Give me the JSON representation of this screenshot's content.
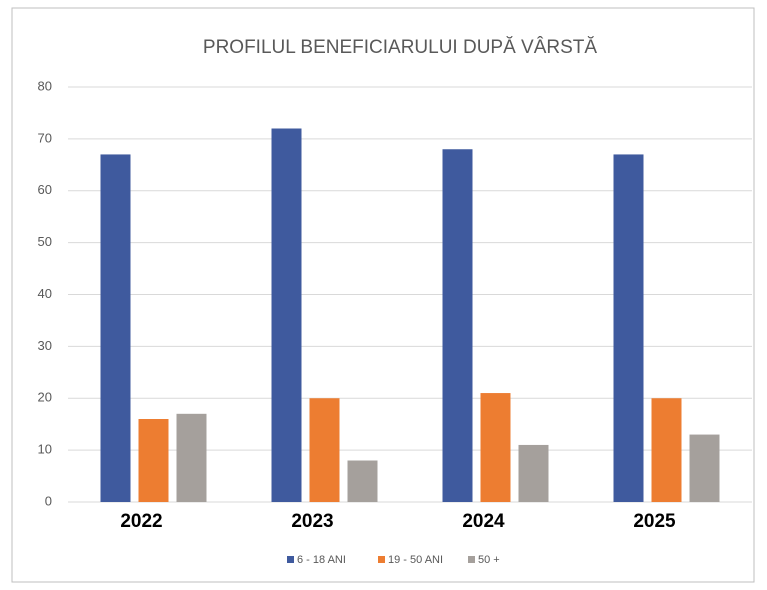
{
  "chart_data": {
    "type": "bar",
    "title": "PROFILUL BENEFICIARULUI DUPĂ VÂRSTĂ",
    "categories": [
      "2022",
      "2023",
      "2024",
      "2025"
    ],
    "series": [
      {
        "name": "6 - 18 ANI",
        "color": "#3f5a9e",
        "values": [
          67,
          72,
          68,
          67
        ]
      },
      {
        "name": "19 - 50 ANI",
        "color": "#ed7d31",
        "values": [
          16,
          20,
          21,
          20
        ]
      },
      {
        "name": "50 +",
        "color": "#a5a09c",
        "values": [
          17,
          8,
          11,
          13
        ]
      }
    ],
    "ylim": [
      0,
      80
    ],
    "yticks": [
      0,
      10,
      20,
      30,
      40,
      50,
      60,
      70,
      80
    ],
    "grid": true,
    "legend": "bottom"
  }
}
